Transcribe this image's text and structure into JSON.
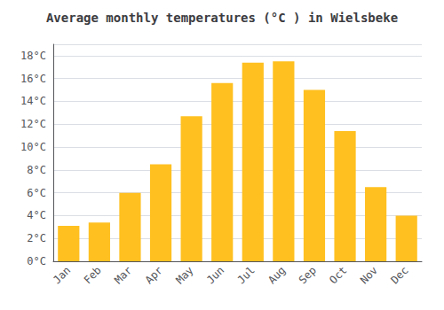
{
  "chart_data": {
    "type": "bar",
    "title": "Average monthly temperatures (°C ) in Wielsbeke",
    "categories": [
      "Jan",
      "Feb",
      "Mar",
      "Apr",
      "May",
      "Jun",
      "Jul",
      "Aug",
      "Sep",
      "Oct",
      "Nov",
      "Dec"
    ],
    "values": [
      3.1,
      3.4,
      6.0,
      8.5,
      12.7,
      15.6,
      17.4,
      17.5,
      15.0,
      11.4,
      6.5,
      4.0
    ],
    "color": "#FFC020",
    "ylim": [
      0,
      19
    ],
    "yticks": [
      {
        "value": 0,
        "label": "0°C"
      },
      {
        "value": 2,
        "label": "2°C"
      },
      {
        "value": 4,
        "label": "4°C"
      },
      {
        "value": 6,
        "label": "6°C"
      },
      {
        "value": 8,
        "label": "8°C"
      },
      {
        "value": 10,
        "label": "10°C"
      },
      {
        "value": 12,
        "label": "12°C"
      },
      {
        "value": 14,
        "label": "14°C"
      },
      {
        "value": 16,
        "label": "16°C"
      },
      {
        "value": 18,
        "label": "18°C"
      }
    ],
    "grid": true
  }
}
